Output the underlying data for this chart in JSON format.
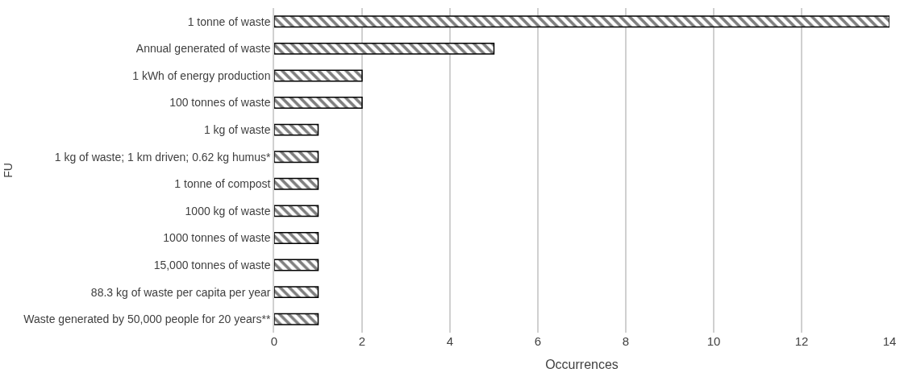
{
  "chart_data": {
    "type": "bar",
    "orientation": "horizontal",
    "xlabel": "Occurrences",
    "ylabel": "FU",
    "categories": [
      "1 tonne of waste",
      "Annual generated of waste",
      "1 kWh of energy production",
      "100 tonnes of waste",
      "1 kg of waste",
      "1 kg of waste; 1 km driven; 0.62 kg humus*",
      "1 tonne of compost",
      "1000 kg of waste",
      "1000 tonnes of waste",
      "15,000 tonnes of waste",
      "88.3 kg of waste per capita per year",
      "Waste generated by 50,000 people for 20 years**"
    ],
    "values": [
      14,
      5,
      2,
      2,
      1,
      1,
      1,
      1,
      1,
      1,
      1,
      1
    ],
    "color": "#000000",
    "xlim": [
      0,
      14
    ],
    "xticks": [
      0,
      2,
      4,
      6,
      8,
      10,
      12,
      14
    ],
    "grid": "x",
    "legend": false
  }
}
